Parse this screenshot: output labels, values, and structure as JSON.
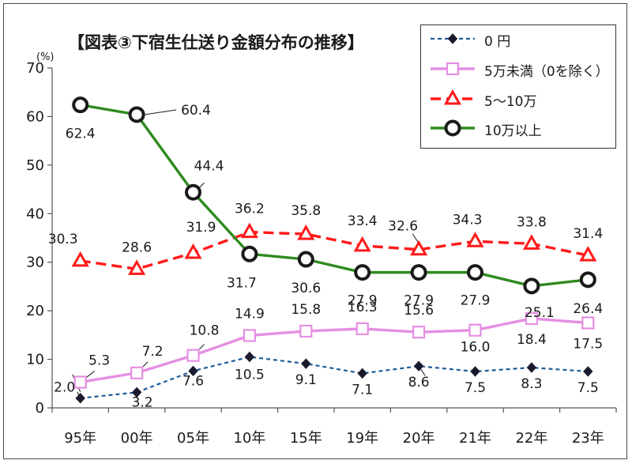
{
  "chart_data": {
    "type": "line",
    "title": "【図表③下宿生仕送り金額分布の推移】",
    "ylabel": "",
    "y_unit": "(%)",
    "ylim": [
      0,
      70
    ],
    "yticks": [
      "0",
      "10",
      "20",
      "30",
      "40",
      "50",
      "60",
      "70"
    ],
    "categories": [
      "95年",
      "00年",
      "05年",
      "10年",
      "15年",
      "19年",
      "20年",
      "21年",
      "22年",
      "23年"
    ],
    "grid": false,
    "legend_position": "top-right",
    "series": [
      {
        "name": "0 円",
        "values": [
          2.0,
          3.2,
          7.6,
          10.5,
          9.1,
          7.1,
          8.6,
          7.5,
          8.3,
          7.5
        ],
        "labels": [
          "2.0",
          "3.2",
          "7.6",
          "10.5",
          "9.1",
          "7.1",
          "8.6",
          "7.5",
          "8.3",
          "7.5"
        ],
        "color": "#1f5c99",
        "dash": "5 4",
        "marker": "diamond"
      },
      {
        "name": "5万未満（0を除く）",
        "values": [
          5.3,
          7.2,
          10.8,
          14.9,
          15.8,
          16.3,
          15.6,
          16.0,
          18.4,
          17.5
        ],
        "labels": [
          "5.3",
          "7.2",
          "10.8",
          "14.9",
          "15.8",
          "16.3",
          "15.6",
          "16.0",
          "18.4",
          "17.5"
        ],
        "color": "#e58fe2",
        "dash": "",
        "marker": "square"
      },
      {
        "name": "5～10万",
        "values": [
          30.3,
          28.6,
          31.9,
          36.2,
          35.8,
          33.4,
          32.6,
          34.3,
          33.8,
          31.4
        ],
        "labels": [
          "30.3",
          "28.6",
          "31.9",
          "36.2",
          "35.8",
          "33.4",
          "32.6",
          "34.3",
          "33.8",
          "31.4"
        ],
        "color": "#ff1a1a",
        "dash": "13 7",
        "marker": "triangle"
      },
      {
        "name": "10万以上",
        "values": [
          62.4,
          60.4,
          44.4,
          31.7,
          30.6,
          27.9,
          27.9,
          27.9,
          25.1,
          26.4
        ],
        "labels": [
          "62.4",
          "60.4",
          "44.4",
          "31.7",
          "30.6",
          "27.9",
          "27.9",
          "27.9",
          "25.1",
          "26.4"
        ],
        "color": "#2e8b1f",
        "dash": "",
        "marker": "circle"
      }
    ]
  }
}
